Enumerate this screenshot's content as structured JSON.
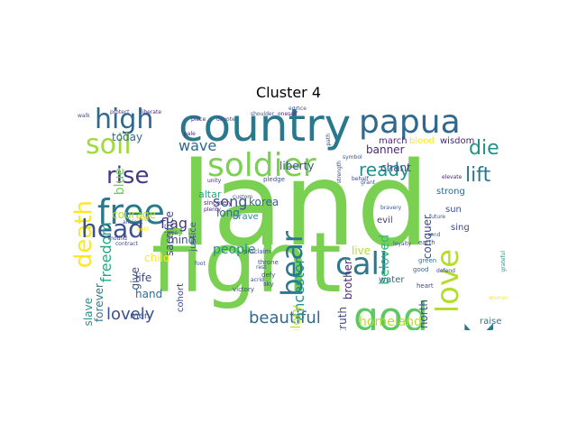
{
  "figure": {
    "title": "Cluster 4"
  },
  "word_cloud": {
    "words": [
      {
        "text": "land",
        "color": "#7ad151"
      },
      {
        "text": "fight",
        "color": "#7ad151"
      },
      {
        "text": "country",
        "color": "#2a788e"
      },
      {
        "text": "work",
        "color": "#2a788e"
      },
      {
        "text": "god",
        "color": "#5ec962"
      },
      {
        "text": "papua",
        "color": "#31688e"
      },
      {
        "text": "soldier",
        "color": "#7ad151"
      },
      {
        "text": "free",
        "color": "#2a788e"
      },
      {
        "text": "call",
        "color": "#2a788e"
      },
      {
        "text": "high",
        "color": "#31688e"
      },
      {
        "text": "love",
        "color": "#b5de2b"
      },
      {
        "text": "father",
        "color": "#3b528b"
      },
      {
        "text": "soil",
        "color": "#a0da39"
      },
      {
        "text": "die",
        "color": "#21918c"
      },
      {
        "text": "death",
        "color": "#fde725"
      },
      {
        "text": "head",
        "color": "#3b528b"
      },
      {
        "text": "rise",
        "color": "#443983"
      },
      {
        "text": "bear",
        "color": "#2a788e"
      },
      {
        "text": "lift",
        "color": "#2a788e"
      },
      {
        "text": "ready",
        "color": "#21918c"
      },
      {
        "text": "beautiful",
        "color": "#31688e"
      },
      {
        "text": "homeland",
        "color": "#b5de2b"
      },
      {
        "text": "lovely",
        "color": "#3b528b"
      },
      {
        "text": "freedom",
        "color": "#22a884"
      },
      {
        "text": "blue",
        "color": "#6ece58"
      },
      {
        "text": "wave",
        "color": "#31688e"
      },
      {
        "text": "ancestor",
        "color": "#21918c"
      },
      {
        "text": "north",
        "color": "#3e4989"
      },
      {
        "text": "beloved",
        "color": "#35b779"
      },
      {
        "text": "flag",
        "color": "#443983"
      },
      {
        "text": "song",
        "color": "#3b528b"
      },
      {
        "text": "korea",
        "color": "#31688e"
      },
      {
        "text": "people",
        "color": "#21918c"
      },
      {
        "text": "live",
        "color": "#b5de2b"
      },
      {
        "text": "glory",
        "color": "#b5de2b"
      },
      {
        "text": "truth",
        "color": "#3e4989"
      },
      {
        "text": "brother",
        "color": "#482878"
      },
      {
        "text": "conquer",
        "color": "#3e4989"
      },
      {
        "text": "mind",
        "color": "#3b528b"
      },
      {
        "text": "hand",
        "color": "#31688e"
      },
      {
        "text": "life",
        "color": "#3e4989"
      },
      {
        "text": "slave",
        "color": "#21918c"
      },
      {
        "text": "forever",
        "color": "#2a788e"
      },
      {
        "text": "today",
        "color": "#31688e"
      },
      {
        "text": "courage",
        "color": "#b5de2b"
      },
      {
        "text": "sacrifice",
        "color": "#3e4989"
      },
      {
        "text": "justice",
        "color": "#3b528b"
      },
      {
        "text": "altar",
        "color": "#22a884"
      },
      {
        "text": "liberty",
        "color": "#3b528b"
      },
      {
        "text": "banner",
        "color": "#482878"
      },
      {
        "text": "chant",
        "color": "#3e4989"
      },
      {
        "text": "march",
        "color": "#482878"
      },
      {
        "text": "blood",
        "color": "#fde725"
      },
      {
        "text": "wisdom",
        "color": "#482878"
      },
      {
        "text": "strong",
        "color": "#31688e"
      },
      {
        "text": "sun",
        "color": "#3b528b"
      },
      {
        "text": "sing",
        "color": "#3e4989"
      },
      {
        "text": "evil",
        "color": "#443983"
      },
      {
        "text": "water",
        "color": "#31688e"
      },
      {
        "text": "raise",
        "color": "#2a788e"
      },
      {
        "text": "men",
        "color": "#3b528b"
      },
      {
        "text": "give",
        "color": "#3b528b"
      },
      {
        "text": "child",
        "color": "#fde725"
      },
      {
        "text": "cohort",
        "color": "#3e4989"
      },
      {
        "text": "long",
        "color": "#31688e"
      },
      {
        "text": "brave",
        "color": "#21918c"
      },
      {
        "text": "victory",
        "color": "#3e4989"
      },
      {
        "text": "green",
        "color": "#2a788e"
      },
      {
        "text": "good",
        "color": "#31688e"
      },
      {
        "text": "earth",
        "color": "#3b528b"
      },
      {
        "text": "heart",
        "color": "#3e4989"
      },
      {
        "text": "sky",
        "color": "#3e4989"
      },
      {
        "text": "defy",
        "color": "#3e4989"
      },
      {
        "text": "pledge",
        "color": "#3b528b"
      },
      {
        "text": "throne",
        "color": "#3b528b"
      },
      {
        "text": "proclaim",
        "color": "#3b528b"
      },
      {
        "text": "sincerely",
        "color": "#482878"
      },
      {
        "text": "plenty",
        "color": "#482878"
      },
      {
        "text": "protect",
        "color": "#443983"
      },
      {
        "text": "liberate",
        "color": "#482878"
      },
      {
        "text": "devote",
        "color": "#3e4989"
      },
      {
        "text": "shoulder",
        "color": "#3b528b"
      },
      {
        "text": "oneself",
        "color": "#482878"
      },
      {
        "text": "edifice",
        "color": "#3b528b"
      },
      {
        "text": "walk",
        "color": "#3b528b"
      },
      {
        "text": "piece",
        "color": "#482878"
      },
      {
        "text": "path",
        "color": "#3b528b"
      },
      {
        "text": "custom",
        "color": "#3b528b"
      },
      {
        "text": "strength",
        "color": "#3e4989"
      },
      {
        "text": "symbol",
        "color": "#3b528b"
      },
      {
        "text": "future",
        "color": "#3b528b"
      },
      {
        "text": "send",
        "color": "#31688e"
      },
      {
        "text": "grateful",
        "color": "#21918c"
      },
      {
        "text": "bravery",
        "color": "#3b528b"
      },
      {
        "text": "unity",
        "color": "#482878"
      },
      {
        "text": "ancient",
        "color": "#3b528b"
      },
      {
        "text": "gold",
        "color": "#fde725"
      },
      {
        "text": "eye",
        "color": "#3e4989"
      },
      {
        "text": "hold",
        "color": "#fde725"
      },
      {
        "text": "grant",
        "color": "#3b528b"
      },
      {
        "text": "foot",
        "color": "#3b528b"
      },
      {
        "text": "mound",
        "color": "#443983"
      },
      {
        "text": "contract",
        "color": "#3e4989"
      },
      {
        "text": "loyalty",
        "color": "#3b528b"
      },
      {
        "text": "elevate",
        "color": "#482878"
      },
      {
        "text": "defend",
        "color": "#3e4989"
      },
      {
        "text": "rest",
        "color": "#3b528b"
      },
      {
        "text": "woman",
        "color": "#fde725"
      },
      {
        "text": "pale",
        "color": "#482878"
      },
      {
        "text": "behalf",
        "color": "#3e4989"
      },
      {
        "text": "acrid",
        "color": "#3e4989"
      }
    ]
  }
}
